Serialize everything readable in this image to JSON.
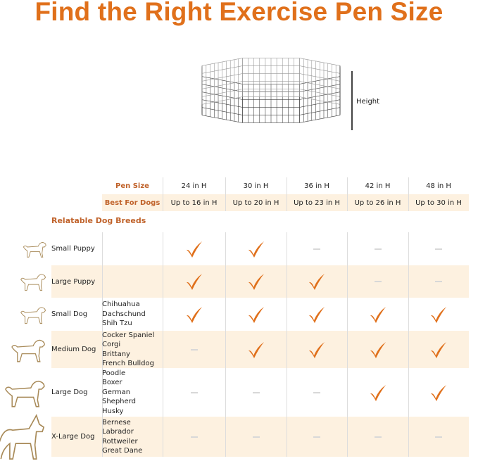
{
  "title": "Find the Right Exercise Pen Size",
  "height_label": "Height",
  "colors": {
    "accent": "#e0701b",
    "header_text": "#c0622a",
    "shade": "#fdf1e0",
    "check": "#e0701b",
    "dog_outline": "#a88a58"
  },
  "table": {
    "pen_size_label": "Pen Size",
    "best_for_label": "Best For Dogs",
    "columns": [
      {
        "pen": "24 in H",
        "dogs": "Up to 16 in H"
      },
      {
        "pen": "30 in H",
        "dogs": "Up to 20 in H"
      },
      {
        "pen": "36 in H",
        "dogs": "Up to 23 in H"
      },
      {
        "pen": "42 in H",
        "dogs": "Up to 26 in H"
      },
      {
        "pen": "48 in H",
        "dogs": "Up to 30 in H"
      }
    ],
    "breeds_heading": "Relatable Dog Breeds",
    "rows": [
      {
        "label": "Small Puppy",
        "breeds": [],
        "icon": "small-puppy-icon",
        "fits": [
          true,
          true,
          false,
          false,
          false
        ]
      },
      {
        "label": "Large Puppy",
        "breeds": [],
        "icon": "large-puppy-icon",
        "fits": [
          true,
          true,
          true,
          false,
          false
        ]
      },
      {
        "label": "Small Dog",
        "breeds": [
          "Chihuahua",
          "Dachschund",
          "Shih Tzu"
        ],
        "icon": "small-dog-icon",
        "fits": [
          true,
          true,
          true,
          true,
          true
        ]
      },
      {
        "label": "Medium Dog",
        "breeds": [
          "Cocker Spaniel",
          "Corgi",
          "Brittany",
          "French Bulldog"
        ],
        "icon": "medium-dog-icon",
        "fits": [
          false,
          true,
          true,
          true,
          true
        ]
      },
      {
        "label": "Large Dog",
        "breeds": [
          "Poodle",
          "Boxer",
          "German",
          "Shepherd",
          "Husky"
        ],
        "icon": "large-dog-icon",
        "fits": [
          false,
          false,
          false,
          true,
          true
        ]
      },
      {
        "label": "X-Large Dog",
        "breeds": [
          "Bernese",
          "Labrador",
          "Rottweiler",
          "Great Dane"
        ],
        "icon": "x-large-dog-icon",
        "fits": [
          false,
          false,
          false,
          false,
          false
        ]
      }
    ]
  }
}
